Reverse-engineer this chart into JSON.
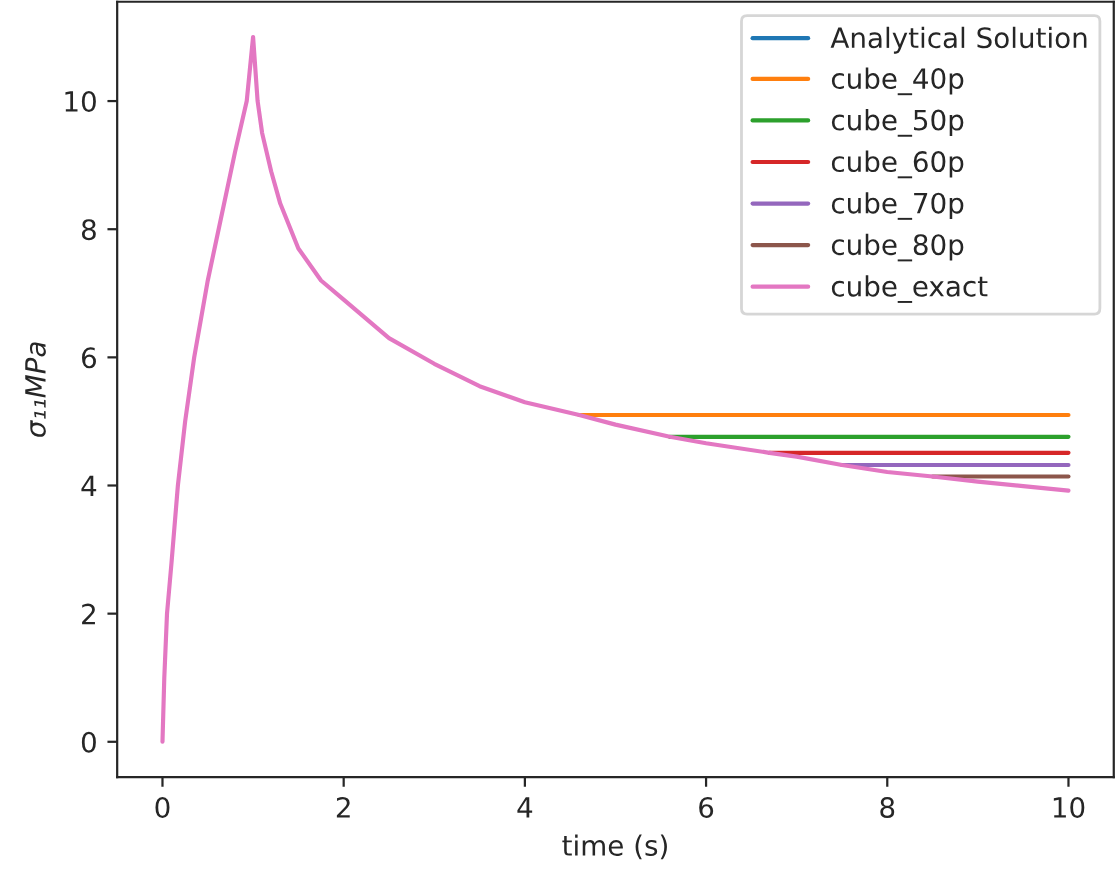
{
  "chart_data": {
    "type": "line",
    "xlabel": "time (s)",
    "ylabel": "σ₁₁MPa",
    "x": [
      0,
      0.02,
      0.05,
      0.1,
      0.17,
      0.25,
      0.35,
      0.5,
      0.62,
      0.8,
      0.93,
      1,
      1.05,
      1.1,
      1.2,
      1.3,
      1.5,
      1.75,
      2,
      2.5,
      3,
      3.5,
      4,
      4.6,
      5,
      5.6,
      6,
      6.7,
      7,
      7.5,
      8,
      8.5,
      9,
      9.5,
      10
    ],
    "series": [
      {
        "name": "Analytical Solution",
        "color": "#1f77b4",
        "values": [
          null,
          null,
          null,
          null,
          null,
          null,
          null,
          null,
          null,
          null,
          null,
          null,
          null,
          null,
          null,
          null,
          null,
          null,
          null,
          null,
          null,
          null,
          null,
          null,
          null,
          null,
          null,
          null,
          null,
          null,
          null,
          null,
          null,
          null,
          null
        ]
      },
      {
        "name": "cube_40p",
        "color": "#ff7f0e",
        "values": [
          null,
          null,
          null,
          null,
          null,
          null,
          null,
          null,
          null,
          null,
          null,
          null,
          null,
          null,
          null,
          null,
          null,
          null,
          null,
          null,
          null,
          null,
          null,
          5.1,
          5.1,
          5.1,
          5.1,
          5.1,
          5.1,
          5.1,
          5.1,
          5.1,
          5.1,
          5.1,
          5.1
        ]
      },
      {
        "name": "cube_50p",
        "color": "#2ca02c",
        "values": [
          null,
          null,
          null,
          null,
          null,
          null,
          null,
          null,
          null,
          null,
          null,
          null,
          null,
          null,
          null,
          null,
          null,
          null,
          null,
          null,
          null,
          null,
          null,
          null,
          null,
          4.76,
          4.76,
          4.76,
          4.76,
          4.76,
          4.76,
          4.76,
          4.76,
          4.76,
          4.76
        ]
      },
      {
        "name": "cube_60p",
        "color": "#d62728",
        "values": [
          null,
          null,
          null,
          null,
          null,
          null,
          null,
          null,
          null,
          null,
          null,
          null,
          null,
          null,
          null,
          null,
          null,
          null,
          null,
          null,
          null,
          null,
          null,
          null,
          null,
          null,
          null,
          4.51,
          4.51,
          4.51,
          4.51,
          4.51,
          4.51,
          4.51,
          4.51
        ]
      },
      {
        "name": "cube_70p",
        "color": "#9467bd",
        "values": [
          null,
          null,
          null,
          null,
          null,
          null,
          null,
          null,
          null,
          null,
          null,
          null,
          null,
          null,
          null,
          null,
          null,
          null,
          null,
          null,
          null,
          null,
          null,
          null,
          null,
          null,
          null,
          null,
          null,
          4.32,
          4.32,
          4.32,
          4.32,
          4.32,
          4.32
        ]
      },
      {
        "name": "cube_80p",
        "color": "#8c564b",
        "values": [
          null,
          null,
          null,
          null,
          null,
          null,
          null,
          null,
          null,
          null,
          null,
          null,
          null,
          null,
          null,
          null,
          null,
          null,
          null,
          null,
          null,
          null,
          null,
          null,
          null,
          null,
          null,
          null,
          null,
          null,
          null,
          4.14,
          4.14,
          4.14,
          4.14
        ]
      },
      {
        "name": "cube_exact",
        "color": "#e377c2",
        "values": [
          0,
          1.0,
          2,
          2.8,
          4,
          5,
          6,
          7.2,
          8,
          9.2,
          10,
          11,
          10.0,
          9.5,
          8.9,
          8.4,
          7.7,
          7.2,
          6.9,
          6.3,
          5.9,
          5.55,
          5.3,
          5.1,
          4.95,
          4.76,
          4.66,
          4.51,
          4.45,
          4.32,
          4.21,
          4.14,
          4.06,
          3.99,
          3.92
        ]
      }
    ],
    "xlim": [
      -0.5,
      10.5
    ],
    "ylim": [
      -0.55,
      11.55
    ],
    "xticks": [
      0,
      2,
      4,
      6,
      8,
      10
    ],
    "yticks": [
      0,
      2,
      4,
      6,
      8,
      10
    ],
    "grid": false,
    "legend": "top right"
  }
}
